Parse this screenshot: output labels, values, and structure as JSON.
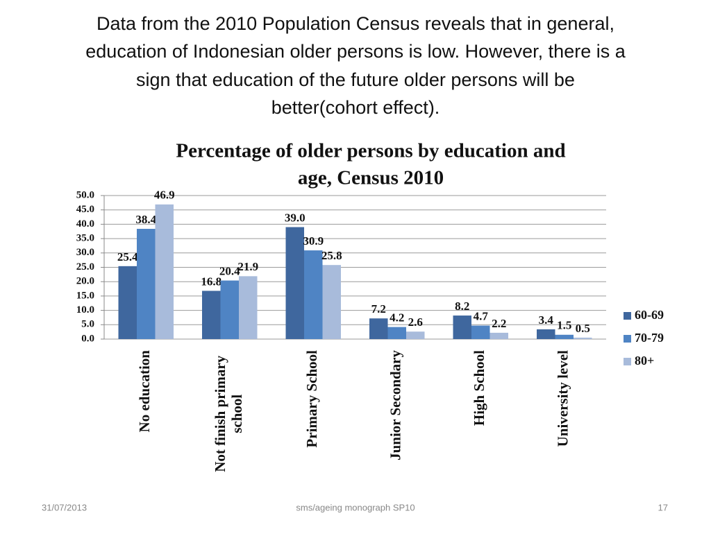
{
  "header": {
    "lines": [
      "Data from the 2010 Population Census reveals that in general,",
      "education of Indonesian older persons is low. However, there is a",
      "sign that education of the future older persons will be",
      "better(cohort effect)."
    ]
  },
  "chart_data": {
    "type": "bar",
    "title": [
      "Percentage of older persons by education and",
      "age, Census 2010"
    ],
    "categories": [
      "No education",
      "Not finish primary school",
      "Primary School",
      "Junior Secondary",
      "High School",
      "University level"
    ],
    "series": [
      {
        "name": "60-69",
        "color": "#3f679e",
        "values": [
          25.4,
          16.8,
          39.0,
          7.2,
          8.2,
          3.4
        ],
        "value_labels": [
          "25.4",
          "16.8",
          "39.0",
          "7.2",
          "8.2",
          "3.4"
        ]
      },
      {
        "name": "70-79",
        "color": "#4f84c4",
        "values": [
          38.4,
          20.4,
          30.9,
          4.2,
          4.7,
          1.5
        ],
        "value_labels": [
          "38.4",
          "20.4",
          "30.9",
          "4.2",
          "4.7",
          "1.5"
        ]
      },
      {
        "name": "80+",
        "color": "#a8bbdb",
        "values": [
          46.9,
          21.9,
          25.8,
          2.6,
          2.2,
          0.5
        ],
        "value_labels": [
          "46.9",
          "21.9",
          "25.8",
          "2.6",
          "2.2",
          "0.5"
        ]
      }
    ],
    "ylim": [
      0,
      50
    ],
    "yticks": [
      {
        "value": 0,
        "label": "0.0"
      },
      {
        "value": 5,
        "label": "5.0"
      },
      {
        "value": 10,
        "label": "10.0"
      },
      {
        "value": 15,
        "label": "15.0"
      },
      {
        "value": 20,
        "label": "20.0"
      },
      {
        "value": 25,
        "label": "25.0"
      },
      {
        "value": 30,
        "label": "30.0"
      },
      {
        "value": 35,
        "label": "35.0"
      },
      {
        "value": 40,
        "label": "40.0"
      },
      {
        "value": 45,
        "label": "45.0"
      },
      {
        "value": 50,
        "label": "50.0"
      }
    ],
    "grid": true,
    "legend": "right"
  },
  "footer": {
    "date": "31/07/2013",
    "source": "sms/ageing monograph SP10",
    "page": "17"
  }
}
